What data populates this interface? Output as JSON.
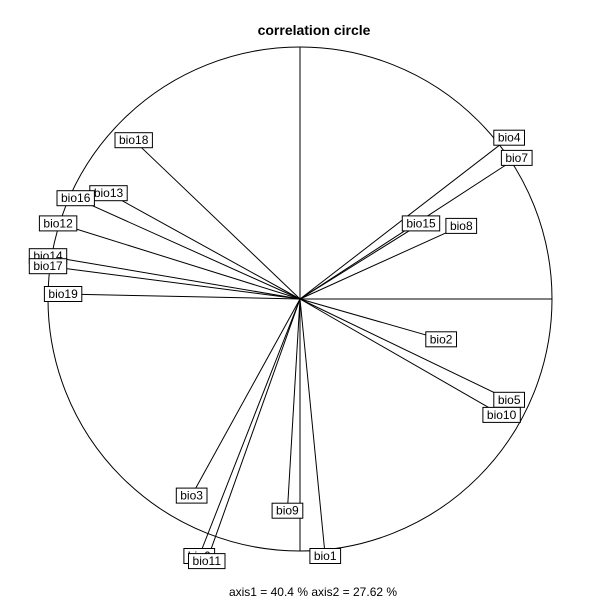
{
  "chart_data": {
    "type": "correlation-circle",
    "title": "correlation circle",
    "caption": "axis1 =  40.4 % axis2 =  27.62 %",
    "xlim": [
      -1,
      1
    ],
    "ylim": [
      -1,
      1
    ],
    "unit_circle": true,
    "axes_through_origin": true,
    "grid": false,
    "colors": {
      "line": "#000000",
      "label_fill": "#ffffff"
    },
    "variables": [
      {
        "label": "bio1",
        "x": 0.1,
        "y": -1.02
      },
      {
        "label": "bio2",
        "x": 0.56,
        "y": -0.16
      },
      {
        "label": "bio3",
        "x": -0.43,
        "y": -0.78
      },
      {
        "label": "bio4",
        "x": 0.83,
        "y": 0.64
      },
      {
        "label": "bio5",
        "x": 0.83,
        "y": -0.4
      },
      {
        "label": "bio6",
        "x": -0.4,
        "y": -1.02
      },
      {
        "label": "bio7",
        "x": 0.86,
        "y": 0.56
      },
      {
        "label": "bio8",
        "x": 0.64,
        "y": 0.29
      },
      {
        "label": "bio9",
        "x": -0.05,
        "y": -0.84
      },
      {
        "label": "bio10",
        "x": 0.8,
        "y": -0.46
      },
      {
        "label": "bio11",
        "x": -0.37,
        "y": -1.04
      },
      {
        "label": "bio12",
        "x": -0.96,
        "y": 0.3
      },
      {
        "label": "bio13",
        "x": -0.76,
        "y": 0.42
      },
      {
        "label": "bio14",
        "x": -1.0,
        "y": 0.17
      },
      {
        "label": "bio15",
        "x": 0.48,
        "y": 0.3
      },
      {
        "label": "bio16",
        "x": -0.89,
        "y": 0.4
      },
      {
        "label": "bio17",
        "x": -1.0,
        "y": 0.13
      },
      {
        "label": "bio18",
        "x": -0.66,
        "y": 0.63
      },
      {
        "label": "bio19",
        "x": -0.94,
        "y": 0.02
      }
    ]
  }
}
